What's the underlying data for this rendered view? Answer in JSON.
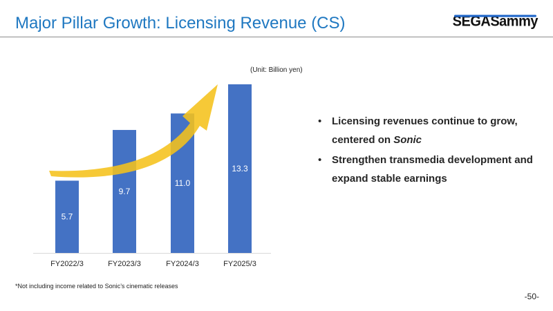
{
  "header": {
    "title": "Major Pillar Growth: Licensing Revenue (CS)",
    "logo_text": "SEGASammy"
  },
  "unit_note": "(Unit: Billion yen)",
  "bullets": [
    {
      "prefix": "Licensing revenues continue to grow, centered on ",
      "emphasis": "Sonic"
    },
    {
      "prefix": "Strengthen transmedia development and expand stable earnings",
      "emphasis": ""
    }
  ],
  "bullet_glyph": "•",
  "footnote": "*Not including income related to Sonic’s cinematic releases",
  "page_number": "-50-",
  "colors": {
    "title": "#1f78c1",
    "bar": "#4472c4",
    "arrow": "#f5c21b",
    "rule": "#8c8c8c"
  },
  "chart_data": {
    "type": "bar",
    "categories": [
      "FY2022/3",
      "FY2023/3",
      "FY2024/3",
      "FY2025/3"
    ],
    "values": [
      5.7,
      9.7,
      11.0,
      13.3
    ],
    "value_labels": [
      "5.7",
      "9.7",
      "11.0",
      "13.3"
    ],
    "ylabel": "",
    "xlabel": "",
    "ylim": [
      0,
      13.3
    ],
    "grid": false,
    "legend": "none",
    "annotation": "upward yellow trend arrow"
  }
}
